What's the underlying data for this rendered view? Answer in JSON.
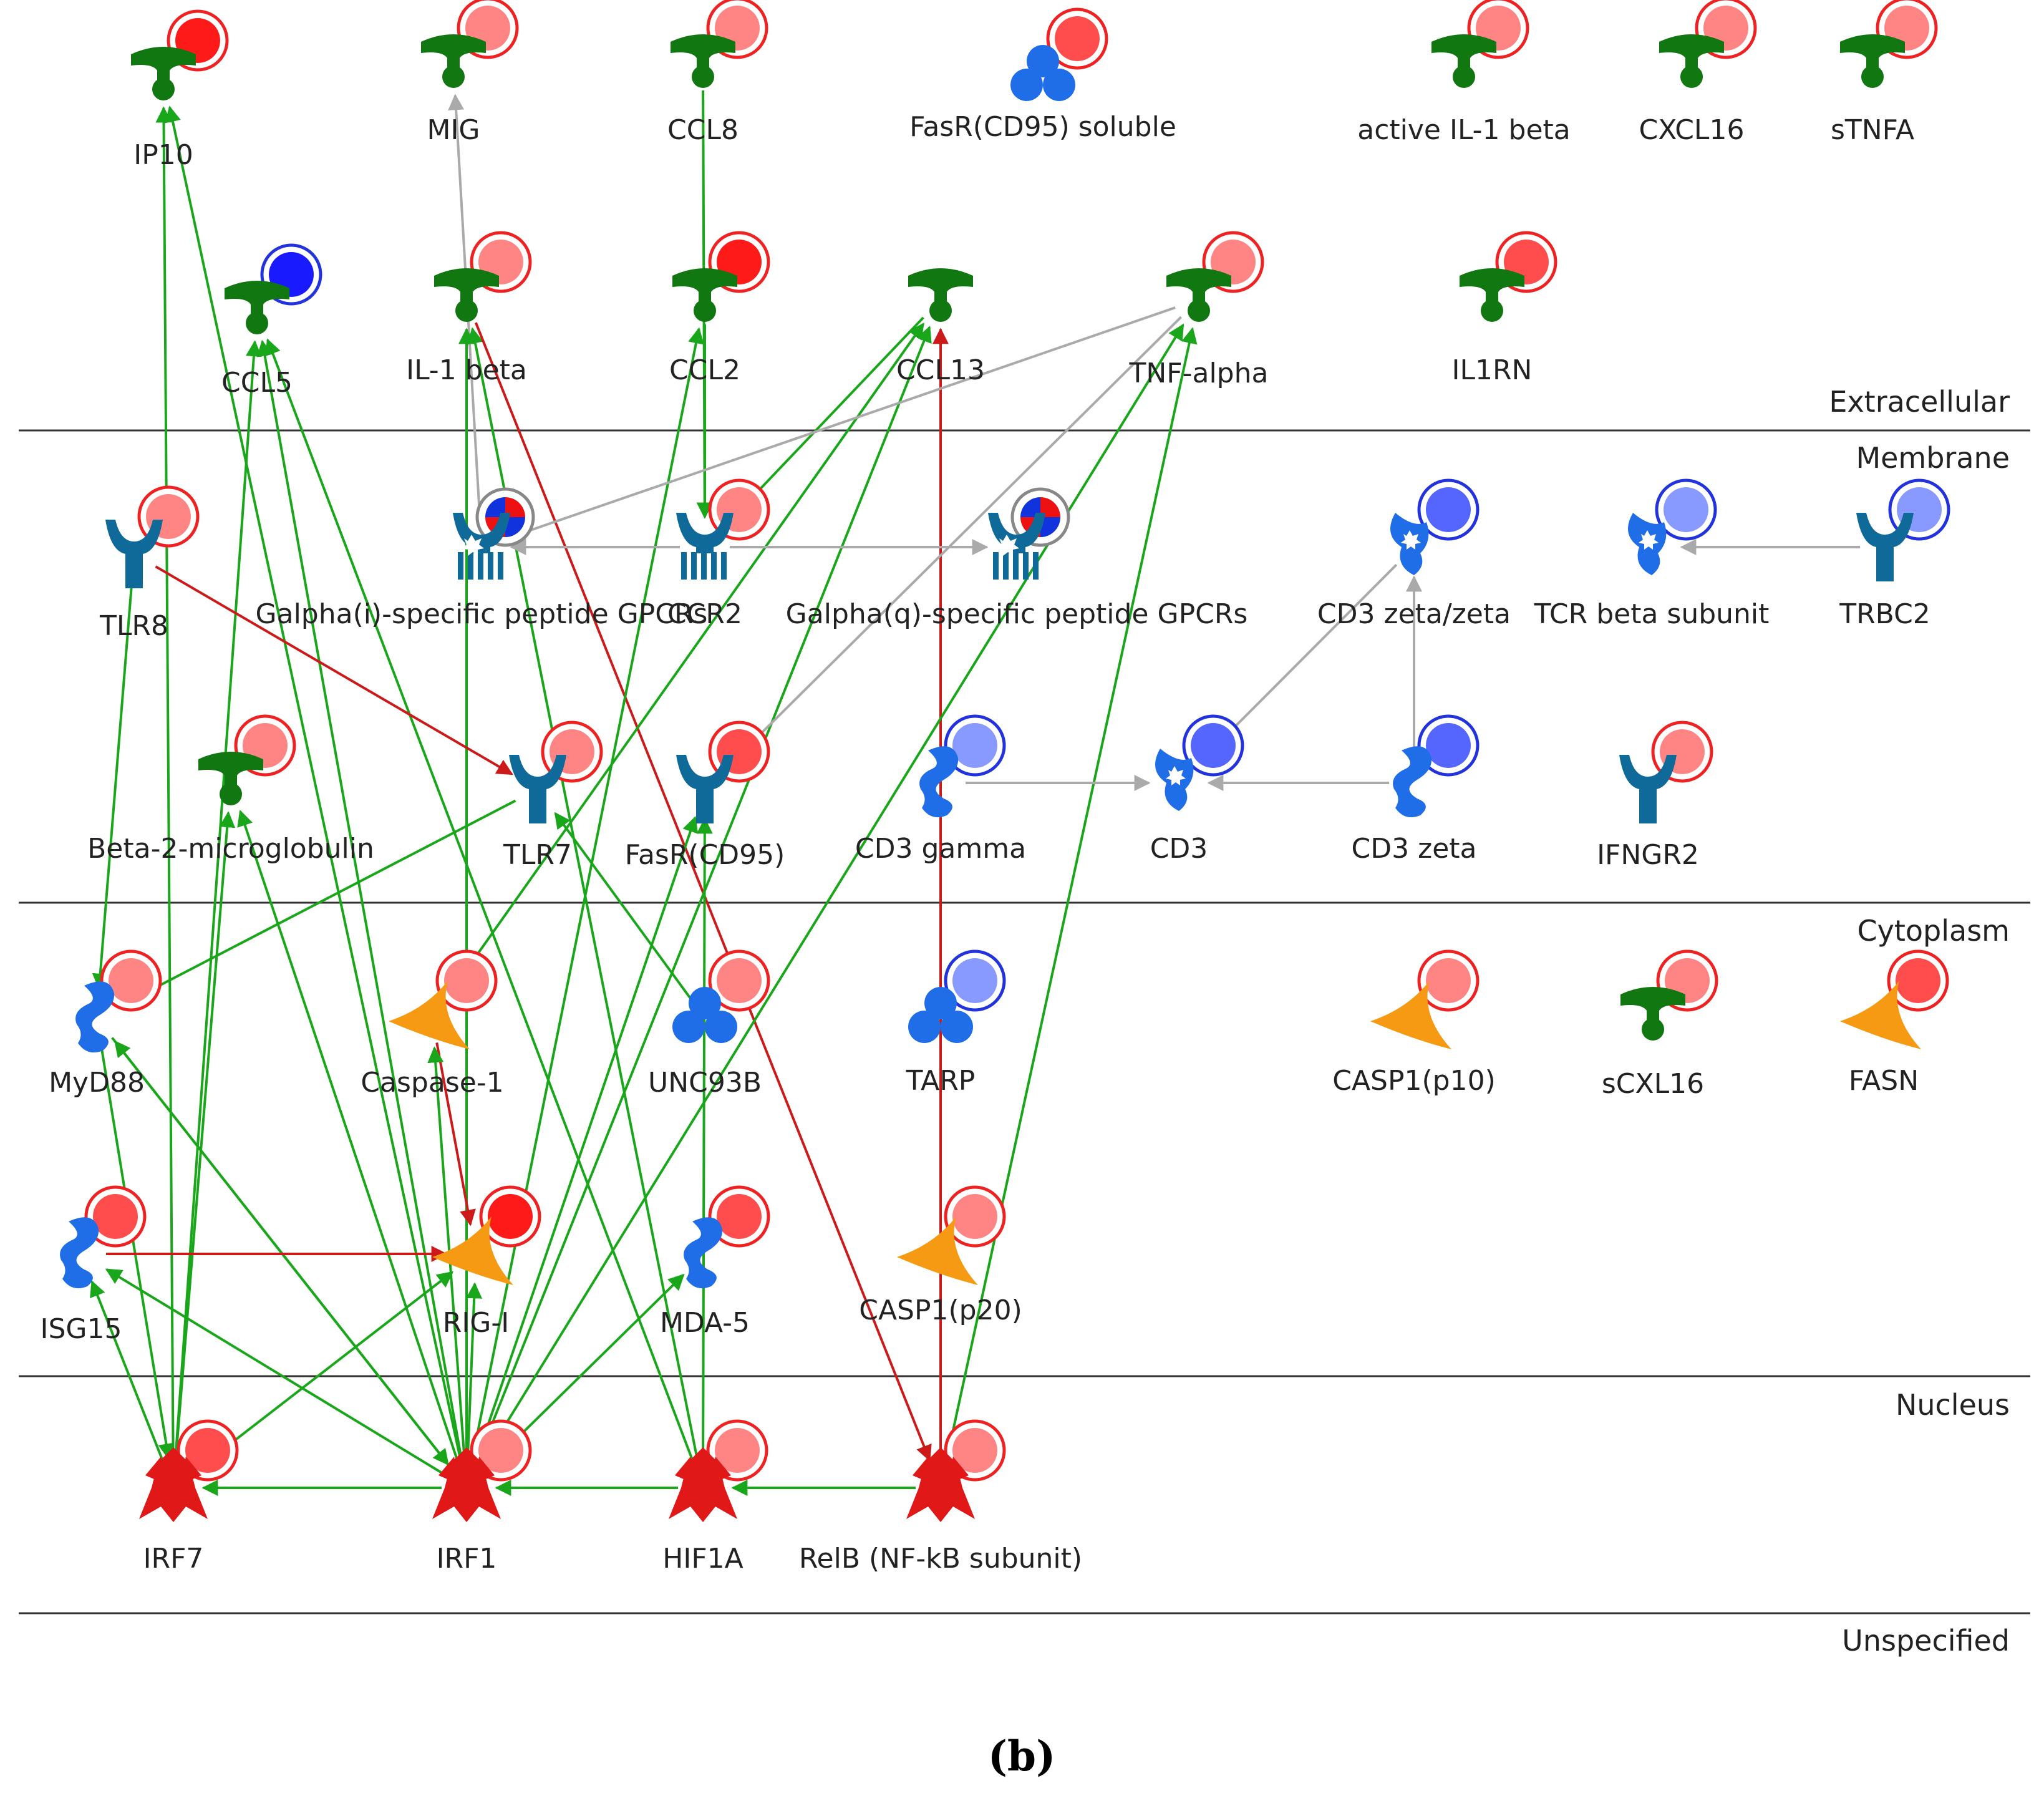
{
  "figure_label": "(b)",
  "compartments": [
    "Extracellular",
    "Membrane",
    "Cytoplasm",
    "Nucleus",
    "Unspecified"
  ],
  "colors": {
    "activation": "#1aa61a",
    "inhibition": "#cc1a1a",
    "unspecified": "#aaaaaa",
    "ligand": "#117711",
    "receptor": "#0f6a99",
    "protein": "#1f6ee8",
    "enzyme": "#f59a12",
    "transcription_factor": "#e11818"
  },
  "nodes": [
    {
      "id": "ip10",
      "label": "IP10",
      "type": "ligand",
      "expr": "up-strong"
    },
    {
      "id": "mig",
      "label": "MIG",
      "type": "ligand",
      "expr": "up-light"
    },
    {
      "id": "ccl8",
      "label": "CCL8",
      "type": "ligand",
      "expr": "up-light"
    },
    {
      "id": "fasrs",
      "label": "FasR(CD95) soluble",
      "type": "protein-complex",
      "expr": "up"
    },
    {
      "id": "il1bact",
      "label": "active IL-1 beta",
      "type": "ligand",
      "expr": "up-light"
    },
    {
      "id": "cxcl16",
      "label": "CXCL16",
      "type": "ligand",
      "expr": "up-light"
    },
    {
      "id": "stnfa",
      "label": "sTNFA",
      "type": "ligand",
      "expr": "up-light"
    },
    {
      "id": "ccl5",
      "label": "CCL5",
      "type": "ligand",
      "expr": "down-strong"
    },
    {
      "id": "il1b",
      "label": "IL-1 beta",
      "type": "ligand",
      "expr": "up-light"
    },
    {
      "id": "ccl2",
      "label": "CCL2",
      "type": "ligand",
      "expr": "up-strong"
    },
    {
      "id": "ccl13",
      "label": "CCL13",
      "type": "ligand",
      "expr": "none"
    },
    {
      "id": "tnfa",
      "label": "TNF-alpha",
      "type": "ligand",
      "expr": "up-light"
    },
    {
      "id": "il1rn",
      "label": "IL1RN",
      "type": "ligand",
      "expr": "up"
    },
    {
      "id": "tlr8",
      "label": "TLR8",
      "type": "receptor",
      "expr": "up-light"
    },
    {
      "id": "gpcri",
      "label": "Galpha(i)-specific peptide GPCRs",
      "type": "gpcr-group",
      "expr": "mixed"
    },
    {
      "id": "ccr2",
      "label": "CCR2",
      "type": "gpcr",
      "expr": "up-light"
    },
    {
      "id": "gpcrq",
      "label": "Galpha(q)-specific peptide GPCRs",
      "type": "gpcr-group",
      "expr": "mixed"
    },
    {
      "id": "cd3zz",
      "label": "CD3 zeta/zeta",
      "type": "receptor-binding",
      "expr": "down"
    },
    {
      "id": "tcrb",
      "label": "TCR beta subunit",
      "type": "receptor-binding",
      "expr": "down-light"
    },
    {
      "id": "trbc2",
      "label": "TRBC2",
      "type": "receptor",
      "expr": "down-light"
    },
    {
      "id": "b2m",
      "label": "Beta-2-microglobulin",
      "type": "ligand",
      "expr": "up-light"
    },
    {
      "id": "tlr7",
      "label": "TLR7",
      "type": "receptor",
      "expr": "up-light"
    },
    {
      "id": "fasr",
      "label": "FasR(CD95)",
      "type": "receptor",
      "expr": "up"
    },
    {
      "id": "cd3g",
      "label": "CD3 gamma",
      "type": "protein",
      "expr": "down-light"
    },
    {
      "id": "cd3",
      "label": "CD3",
      "type": "receptor-binding",
      "expr": "down"
    },
    {
      "id": "cd3z",
      "label": "CD3 zeta",
      "type": "protein",
      "expr": "down"
    },
    {
      "id": "ifngr2",
      "label": "IFNGR2",
      "type": "receptor",
      "expr": "up-light"
    },
    {
      "id": "myd88",
      "label": "MyD88",
      "type": "protein",
      "expr": "up-light"
    },
    {
      "id": "casp1",
      "label": "Caspase-1",
      "type": "enzyme",
      "expr": "up-light"
    },
    {
      "id": "unc93b",
      "label": "UNC93B",
      "type": "protein-complex",
      "expr": "up-light"
    },
    {
      "id": "tarp",
      "label": "TARP",
      "type": "protein-complex",
      "expr": "down-light"
    },
    {
      "id": "casp1p10",
      "label": "CASP1(p10)",
      "type": "enzyme",
      "expr": "up-light"
    },
    {
      "id": "scxl16",
      "label": "sCXL16",
      "type": "ligand",
      "expr": "up-light"
    },
    {
      "id": "fasn",
      "label": "FASN",
      "type": "enzyme",
      "expr": "up"
    },
    {
      "id": "isg15",
      "label": "ISG15",
      "type": "protein",
      "expr": "up"
    },
    {
      "id": "rigi",
      "label": "RIG-I",
      "type": "enzyme",
      "expr": "up-strong"
    },
    {
      "id": "mda5",
      "label": "MDA-5",
      "type": "protein",
      "expr": "up"
    },
    {
      "id": "casp1p20",
      "label": "CASP1(p20)",
      "type": "enzyme",
      "expr": "up-light"
    },
    {
      "id": "irf7",
      "label": "IRF7",
      "type": "transcription-factor",
      "expr": "up"
    },
    {
      "id": "irf1",
      "label": "IRF1",
      "type": "transcription-factor",
      "expr": "up-light"
    },
    {
      "id": "hif1a",
      "label": "HIF1A",
      "type": "transcription-factor",
      "expr": "up-light"
    },
    {
      "id": "relb",
      "label": "RelB (NF-kB subunit)",
      "type": "transcription-factor",
      "expr": "up-light"
    }
  ],
  "edges": [
    {
      "from": "irf7",
      "to": "ip10",
      "kind": "activation"
    },
    {
      "from": "irf1",
      "to": "ip10",
      "kind": "activation"
    },
    {
      "from": "gpcri",
      "to": "mig",
      "kind": "unspecified"
    },
    {
      "from": "ccl8",
      "to": "ccr2",
      "kind": "activation"
    },
    {
      "from": "irf7",
      "to": "ccl5",
      "kind": "activation"
    },
    {
      "from": "irf1",
      "to": "ccl5",
      "kind": "activation"
    },
    {
      "from": "hif1a",
      "to": "ccl5",
      "kind": "activation"
    },
    {
      "from": "irf1",
      "to": "il1b",
      "kind": "activation"
    },
    {
      "from": "hif1a",
      "to": "il1b",
      "kind": "activation"
    },
    {
      "from": "il1b",
      "to": "relb",
      "kind": "inhibition"
    },
    {
      "from": "ccl2",
      "to": "ccr2",
      "kind": "activation"
    },
    {
      "from": "irf1",
      "to": "ccl2",
      "kind": "activation"
    },
    {
      "from": "ccl13",
      "to": "ccr2",
      "kind": "activation"
    },
    {
      "from": "casp1",
      "to": "ccl13",
      "kind": "activation"
    },
    {
      "from": "irf1",
      "to": "ccl13",
      "kind": "activation"
    },
    {
      "from": "relb",
      "to": "ccl13",
      "kind": "inhibition"
    },
    {
      "from": "tnfa",
      "to": "gpcri",
      "kind": "unspecified"
    },
    {
      "from": "irf1",
      "to": "tnfa",
      "kind": "activation"
    },
    {
      "from": "relb",
      "to": "tnfa",
      "kind": "activation"
    },
    {
      "from": "ccr2",
      "to": "gpcri",
      "kind": "unspecified"
    },
    {
      "from": "ccr2",
      "to": "gpcrq",
      "kind": "unspecified"
    },
    {
      "from": "tnfa",
      "to": "fasr",
      "kind": "unspecified"
    },
    {
      "from": "trbc2",
      "to": "tcrb",
      "kind": "unspecified"
    },
    {
      "from": "cd3z",
      "to": "cd3zz",
      "kind": "unspecified"
    },
    {
      "from": "cd3zz",
      "to": "cd3",
      "kind": "unspecified"
    },
    {
      "from": "cd3g",
      "to": "cd3",
      "kind": "unspecified"
    },
    {
      "from": "cd3z",
      "to": "cd3",
      "kind": "unspecified"
    },
    {
      "from": "tlr8",
      "to": "tlr7",
      "kind": "inhibition"
    },
    {
      "from": "tlr8",
      "to": "myd88",
      "kind": "activation"
    },
    {
      "from": "tlr7",
      "to": "myd88",
      "kind": "activation"
    },
    {
      "from": "unc93b",
      "to": "tlr7",
      "kind": "activation"
    },
    {
      "from": "irf7",
      "to": "b2m",
      "kind": "activation"
    },
    {
      "from": "irf1",
      "to": "b2m",
      "kind": "activation"
    },
    {
      "from": "irf1",
      "to": "fasr",
      "kind": "activation"
    },
    {
      "from": "hif1a",
      "to": "fasr",
      "kind": "activation"
    },
    {
      "from": "myd88",
      "to": "irf7",
      "kind": "activation"
    },
    {
      "from": "myd88",
      "to": "irf1",
      "kind": "activation"
    },
    {
      "from": "irf1",
      "to": "myd88",
      "kind": "activation"
    },
    {
      "from": "casp1",
      "to": "rigi",
      "kind": "inhibition"
    },
    {
      "from": "irf1",
      "to": "casp1",
      "kind": "activation"
    },
    {
      "from": "isg15",
      "to": "rigi",
      "kind": "inhibition"
    },
    {
      "from": "irf1",
      "to": "isg15",
      "kind": "activation"
    },
    {
      "from": "irf7",
      "to": "isg15",
      "kind": "activation"
    },
    {
      "from": "irf7",
      "to": "rigi",
      "kind": "activation"
    },
    {
      "from": "irf1",
      "to": "rigi",
      "kind": "activation"
    },
    {
      "from": "irf1",
      "to": "mda5",
      "kind": "activation"
    },
    {
      "from": "irf1",
      "to": "irf7",
      "kind": "activation"
    },
    {
      "from": "hif1a",
      "to": "irf1",
      "kind": "activation"
    },
    {
      "from": "relb",
      "to": "hif1a",
      "kind": "activation"
    }
  ]
}
